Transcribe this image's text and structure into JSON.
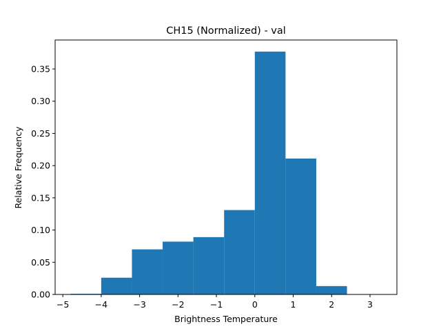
{
  "chart_data": {
    "type": "bar",
    "title": "CH15 (Normalized) - val",
    "xlabel": "Brightness Temperature",
    "ylabel": "Relative Frequency",
    "xlim": [
      -5.2,
      3.7
    ],
    "ylim": [
      0,
      0.395
    ],
    "xticks": [
      -5,
      -4,
      -3,
      -2,
      -1,
      0,
      1,
      2,
      3
    ],
    "xtick_labels": [
      "−5",
      "−4",
      "−3",
      "−2",
      "−1",
      "0",
      "1",
      "2",
      "3"
    ],
    "yticks": [
      0.0,
      0.05,
      0.1,
      0.15,
      0.2,
      0.25,
      0.3,
      0.35
    ],
    "ytick_labels": [
      "0.00",
      "0.05",
      "0.10",
      "0.15",
      "0.20",
      "0.25",
      "0.30",
      "0.35"
    ],
    "bar_color": "#1f77b4",
    "bins": [
      {
        "x0": -4.8,
        "x1": -4.0,
        "value": 0.001
      },
      {
        "x0": -4.0,
        "x1": -3.2,
        "value": 0.026
      },
      {
        "x0": -3.2,
        "x1": -2.4,
        "value": 0.07
      },
      {
        "x0": -2.4,
        "x1": -1.6,
        "value": 0.082
      },
      {
        "x0": -1.6,
        "x1": -0.8,
        "value": 0.089
      },
      {
        "x0": -0.8,
        "x1": 0.0,
        "value": 0.131
      },
      {
        "x0": 0.0,
        "x1": 0.8,
        "value": 0.377
      },
      {
        "x0": 0.8,
        "x1": 1.6,
        "value": 0.211
      },
      {
        "x0": 1.6,
        "x1": 2.4,
        "value": 0.013
      },
      {
        "x0": 2.4,
        "x1": 3.2,
        "value": 0.0
      }
    ],
    "grid": false,
    "legend": false
  }
}
